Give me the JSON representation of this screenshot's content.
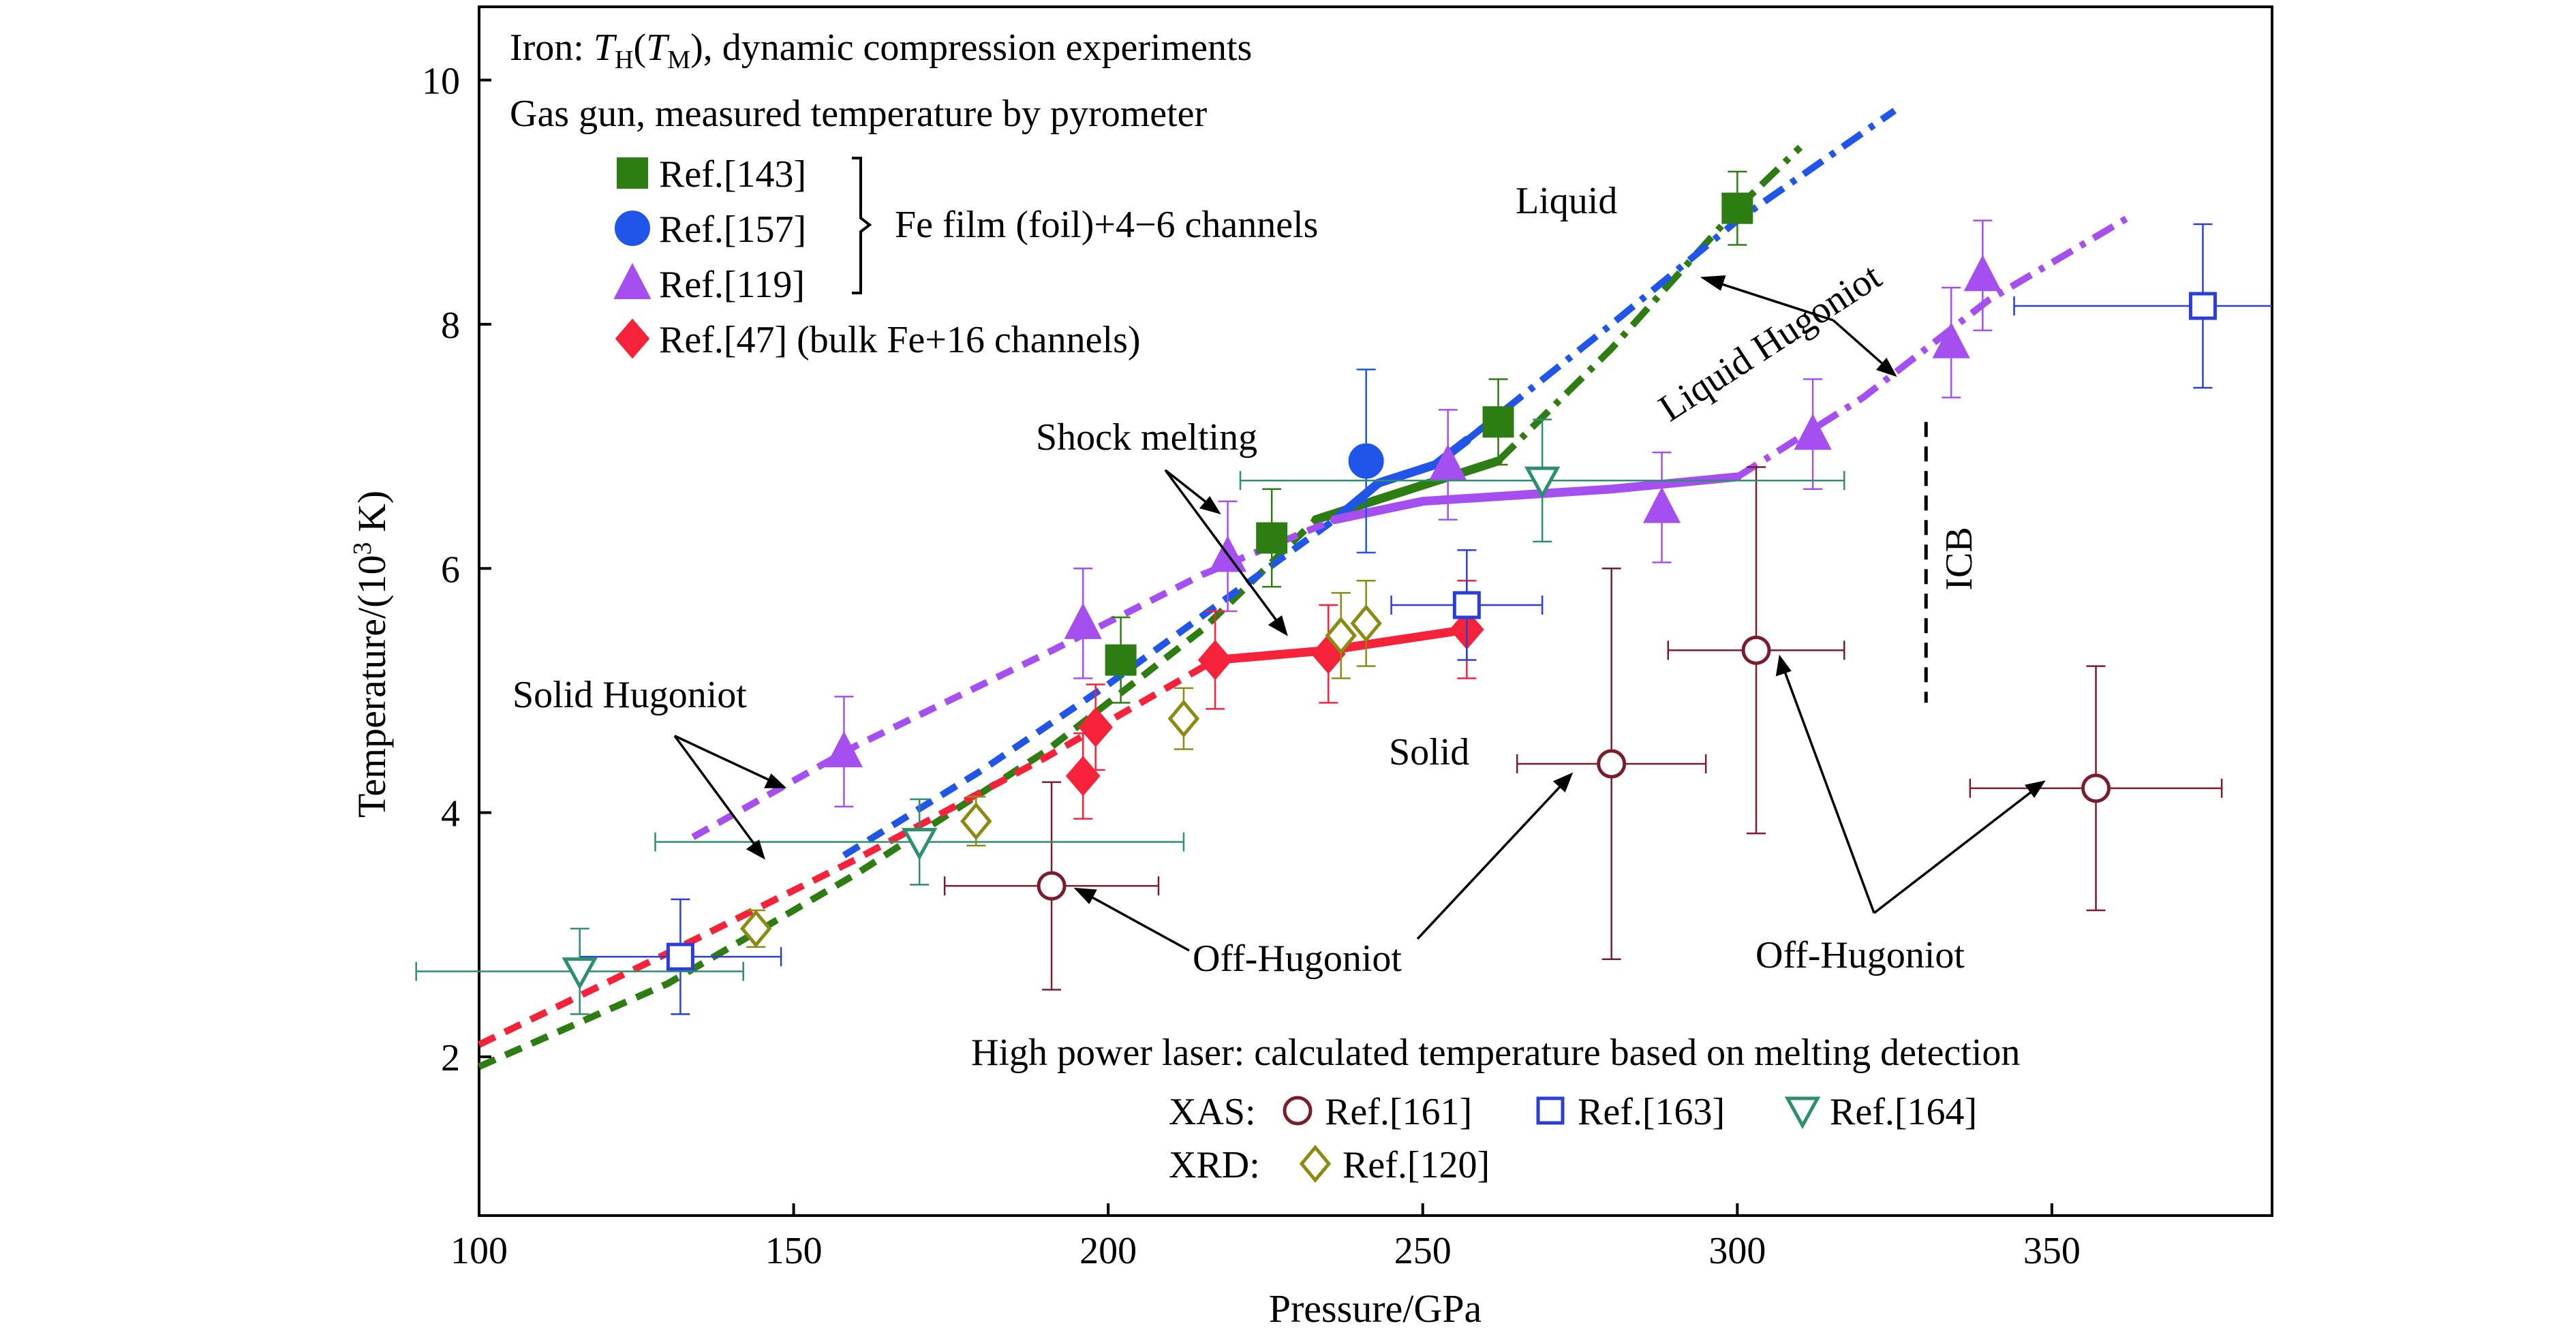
{
  "colors": {
    "green": "#2e7d12",
    "blue": "#1f55e8",
    "violet": "#a64ff0",
    "red": "#f5223a",
    "maroon": "#7a1c2c",
    "olive": "#8b8b12",
    "teal": "#2e8f6f",
    "openBlue": "#2b3fd8"
  },
  "chart_data": {
    "type": "scatter",
    "xlabel": "Pressure/GPa",
    "ylabel_main": "Temperature/(10",
    "ylabel_sup": "3",
    "ylabel_end": " K)",
    "xlim": [
      100,
      385
    ],
    "ylim": [
      0.7,
      10.6
    ],
    "xticks": [
      "100",
      "150",
      "200",
      "250",
      "300",
      "350"
    ],
    "yticks": [
      "2",
      "4",
      "6",
      "8",
      "10"
    ],
    "xtick_values": [
      100,
      150,
      200,
      250,
      300,
      350
    ],
    "ytick_values": [
      2,
      4,
      6,
      8,
      10
    ],
    "header": {
      "line1_a": "Iron: ",
      "line1_T1": "T",
      "line1_H": "H",
      "line1_paren_open": "(",
      "line1_T2": "T",
      "line1_M": "M",
      "line1_b": "), dynamic compression experiments",
      "line2": "Gas gun, measured temperature by pyrometer"
    },
    "legend_gasgun": [
      {
        "label": "Ref.[143]",
        "marker": "filled-square",
        "color": "green"
      },
      {
        "label": "Ref.[157]",
        "marker": "filled-circle",
        "color": "blue"
      },
      {
        "label": "Ref.[119]",
        "marker": "filled-triangle",
        "color": "violet"
      },
      {
        "label": "Ref.[47] (bulk Fe+16 channels)",
        "marker": "filled-diamond",
        "color": "red"
      }
    ],
    "brace_label": "Fe film (foil)+4−6 channels",
    "laser_title": "High power laser: calculated temperature based on melting detection",
    "laser_legend": {
      "xas_label": "XAS:",
      "xrd_label": "XRD:",
      "entries": [
        {
          "label": "Ref.[161]",
          "marker": "open-circle",
          "color": "maroon"
        },
        {
          "label": "Ref.[163]",
          "marker": "open-square",
          "color": "openBlue"
        },
        {
          "label": "Ref.[164]",
          "marker": "open-triangle-down",
          "color": "teal"
        },
        {
          "label": "Ref.[120]",
          "marker": "open-diamond",
          "color": "olive"
        }
      ]
    },
    "annotations": {
      "liquid": "Liquid",
      "liquid_hugoniot": "Liquid Hugoniot",
      "shock_melting": "Shock melting",
      "solid_hugoniot": "Solid Hugoniot",
      "solid": "Solid",
      "off_hugoniot_1": "Off-Hugoniot",
      "off_hugoniot_2": "Off-Hugoniot",
      "icb": "ICB"
    },
    "icb_line": {
      "x": 330,
      "y_range": [
        4.9,
        7.2
      ]
    },
    "series": [
      {
        "name": "Ref.[143]",
        "marker": "filled-square",
        "color": "green",
        "points": [
          {
            "x": 202,
            "y": 5.25,
            "yerr": 0.35,
            "xerr": 0
          },
          {
            "x": 226,
            "y": 6.25,
            "yerr": 0.4,
            "xerr": 0
          },
          {
            "x": 262,
            "y": 7.2,
            "yerr": 0.35,
            "xerr": 0
          },
          {
            "x": 300,
            "y": 8.95,
            "yerr": 0.3,
            "xerr": 0
          }
        ]
      },
      {
        "name": "Ref.[157]",
        "marker": "filled-circle",
        "color": "blue",
        "points": [
          {
            "x": 241,
            "y": 6.88,
            "yerr": 0.75,
            "xerr": 0
          }
        ]
      },
      {
        "name": "Ref.[119]",
        "marker": "filled-triangle",
        "color": "violet",
        "points": [
          {
            "x": 158,
            "y": 4.5,
            "yerr": 0.45,
            "xerr": 0
          },
          {
            "x": 196,
            "y": 5.55,
            "yerr": 0.45,
            "xerr": 0
          },
          {
            "x": 219,
            "y": 6.1,
            "yerr": 0.45,
            "xerr": 0
          },
          {
            "x": 254,
            "y": 6.85,
            "yerr": 0.45,
            "xerr": 0
          },
          {
            "x": 288,
            "y": 6.5,
            "yerr": 0.45,
            "xerr": 0
          },
          {
            "x": 312,
            "y": 7.1,
            "yerr": 0.45,
            "xerr": 0
          },
          {
            "x": 334,
            "y": 7.85,
            "yerr": 0.45,
            "xerr": 0
          },
          {
            "x": 339,
            "y": 8.4,
            "yerr": 0.45,
            "xerr": 0
          }
        ]
      },
      {
        "name": "Ref.[47] (bulk Fe+16 channels)",
        "marker": "filled-diamond",
        "color": "red",
        "points": [
          {
            "x": 196,
            "y": 4.3,
            "yerr": 0.35,
            "xerr": 0
          },
          {
            "x": 198,
            "y": 4.7,
            "yerr": 0.35,
            "xerr": 0
          },
          {
            "x": 217,
            "y": 5.25,
            "yerr": 0.4,
            "xerr": 0
          },
          {
            "x": 235,
            "y": 5.3,
            "yerr": 0.4,
            "xerr": 0
          },
          {
            "x": 257,
            "y": 5.5,
            "yerr": 0.4,
            "xerr": 0
          }
        ]
      },
      {
        "name": "Ref.[161]",
        "marker": "open-circle",
        "color": "maroon",
        "points": [
          {
            "x": 191,
            "y": 3.4,
            "yerr": 0.85,
            "xerr": 17
          },
          {
            "x": 280,
            "y": 4.4,
            "yerr": 1.6,
            "xerr": 15
          },
          {
            "x": 303,
            "y": 5.33,
            "yerr": 1.5,
            "xerr": 14
          },
          {
            "x": 357,
            "y": 4.2,
            "yerr": 1.0,
            "xerr": 20
          }
        ]
      },
      {
        "name": "Ref.[163]",
        "marker": "open-square",
        "color": "openBlue",
        "points": [
          {
            "x": 132,
            "y": 2.82,
            "yerr": 0.47,
            "xerr": 16
          },
          {
            "x": 257,
            "y": 5.7,
            "yerr": 0.45,
            "xerr": 12
          },
          {
            "x": 374,
            "y": 8.15,
            "yerr": 0.67,
            "xerr": 30
          }
        ]
      },
      {
        "name": "Ref.[164]",
        "marker": "open-triangle-down",
        "color": "teal",
        "points": [
          {
            "x": 116,
            "y": 2.7,
            "yerr": 0.35,
            "xerr": 26
          },
          {
            "x": 170,
            "y": 3.76,
            "yerr": 0.35,
            "xerr": 42
          },
          {
            "x": 269,
            "y": 6.72,
            "yerr": 0.5,
            "xerr": 48
          }
        ]
      },
      {
        "name": "Ref.[120]",
        "marker": "open-diamond",
        "color": "olive",
        "points": [
          {
            "x": 144,
            "y": 3.05,
            "yerr": 0.15,
            "xerr": 0
          },
          {
            "x": 179,
            "y": 3.93,
            "yerr": 0.2,
            "xerr": 0
          },
          {
            "x": 212,
            "y": 4.77,
            "yerr": 0.25,
            "xerr": 0
          },
          {
            "x": 237,
            "y": 5.45,
            "yerr": 0.35,
            "xerr": 0
          },
          {
            "x": 241,
            "y": 5.55,
            "yerr": 0.35,
            "xerr": 0
          }
        ]
      }
    ],
    "curves": [
      {
        "color": "green",
        "style": "dashed",
        "points": [
          [
            100,
            1.92
          ],
          [
            130,
            2.6
          ],
          [
            160,
            3.5
          ],
          [
            190,
            4.5
          ],
          [
            215,
            5.5
          ],
          [
            233,
            6.4
          ]
        ]
      },
      {
        "color": "green",
        "style": "solid",
        "points": [
          [
            233,
            6.4
          ],
          [
            245,
            6.6
          ],
          [
            262,
            6.88
          ]
        ]
      },
      {
        "color": "green",
        "style": "dashdot",
        "points": [
          [
            262,
            6.88
          ],
          [
            280,
            7.8
          ],
          [
            300,
            8.95
          ],
          [
            310,
            9.45
          ]
        ]
      },
      {
        "color": "blue",
        "style": "dashed",
        "points": [
          [
            158,
            3.65
          ],
          [
            180,
            4.35
          ],
          [
            200,
            5.05
          ],
          [
            220,
            5.8
          ],
          [
            236,
            6.4
          ]
        ]
      },
      {
        "color": "blue",
        "style": "solid",
        "points": [
          [
            236,
            6.4
          ],
          [
            243,
            6.7
          ],
          [
            252,
            6.85
          ],
          [
            257,
            7.05
          ]
        ]
      },
      {
        "color": "blue",
        "style": "dashdot",
        "points": [
          [
            257,
            7.05
          ],
          [
            280,
            8.0
          ],
          [
            300,
            8.85
          ],
          [
            325,
            9.75
          ]
        ]
      },
      {
        "color": "violet",
        "style": "dashed",
        "points": [
          [
            134,
            3.8
          ],
          [
            160,
            4.55
          ],
          [
            190,
            5.3
          ],
          [
            215,
            5.95
          ],
          [
            236,
            6.4
          ]
        ]
      },
      {
        "color": "violet",
        "style": "solid",
        "points": [
          [
            236,
            6.4
          ],
          [
            250,
            6.55
          ],
          [
            280,
            6.65
          ],
          [
            300,
            6.75
          ]
        ]
      },
      {
        "color": "violet",
        "style": "dashdot",
        "points": [
          [
            300,
            6.75
          ],
          [
            320,
            7.4
          ],
          [
            340,
            8.2
          ],
          [
            363,
            8.9
          ]
        ]
      },
      {
        "color": "red",
        "style": "dashed",
        "points": [
          [
            100,
            2.1
          ],
          [
            130,
            2.85
          ],
          [
            160,
            3.62
          ],
          [
            190,
            4.45
          ],
          [
            217,
            5.25
          ]
        ]
      },
      {
        "color": "red",
        "style": "solid",
        "points": [
          [
            217,
            5.25
          ],
          [
            235,
            5.33
          ],
          [
            257,
            5.5
          ]
        ]
      }
    ]
  }
}
